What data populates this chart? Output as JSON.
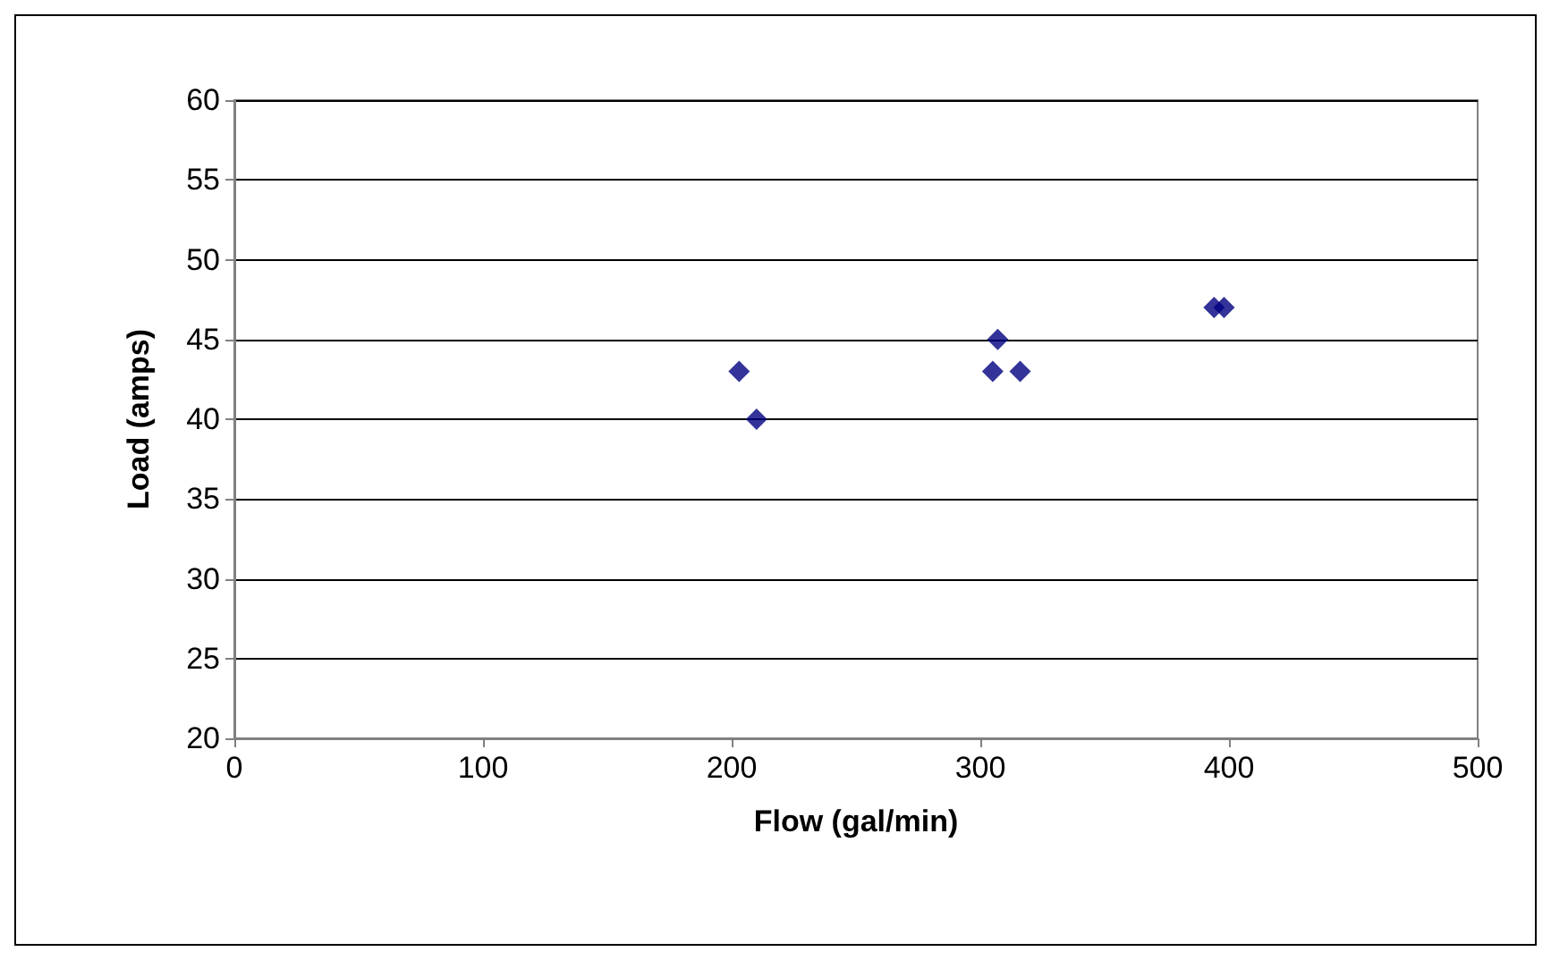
{
  "chart_data": {
    "type": "scatter",
    "xlabel": "Flow (gal/min)",
    "ylabel": "Load (amps)",
    "x": [
      203,
      210,
      305,
      307,
      316,
      394,
      398
    ],
    "series": [
      {
        "color": "#000080",
        "values": [
          43,
          40,
          43,
          45,
          43,
          47,
          47
        ]
      }
    ],
    "xlim": [
      0,
      500
    ],
    "xticks": [
      0,
      100,
      200,
      300,
      400,
      500
    ],
    "ylim": [
      20,
      60
    ],
    "yticks": [
      20,
      25,
      30,
      35,
      40,
      45,
      50,
      55,
      60
    ],
    "grid": "y",
    "marker": "diamond"
  }
}
